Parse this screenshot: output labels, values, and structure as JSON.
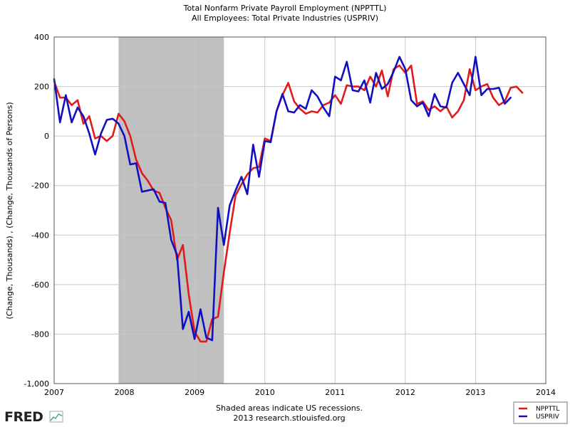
{
  "chart_data": {
    "type": "line",
    "title": "Total Nonfarm Private Payroll Employment (NPPTTL)",
    "subtitle": "All Employees: Total Private Industries (USPRIV)",
    "ylabel": "(Change, Thousands) , (Change, Thousands of Persons)",
    "xlabel": "",
    "xlim": [
      2007,
      2014
    ],
    "ylim": [
      -1000,
      400
    ],
    "x_ticks": [
      "2007",
      "2008",
      "2009",
      "2010",
      "2011",
      "2012",
      "2013",
      "2014"
    ],
    "y_ticks": [
      "400",
      "200",
      "0",
      "-200",
      "-400",
      "-600",
      "-800",
      "-1,000"
    ],
    "grid": true,
    "legend_position": "bottom-right",
    "recession": {
      "start": 2007.917,
      "end": 2009.417,
      "color": "#c0c0c0"
    },
    "series": [
      {
        "name": "NPPTTL",
        "color": "#e01b1b",
        "start": 2007.0,
        "step": 0.0833333,
        "values": [
          220,
          155,
          155,
          125,
          145,
          50,
          80,
          -10,
          0,
          -20,
          0,
          90,
          60,
          0,
          -95,
          -150,
          -180,
          -220,
          -230,
          -290,
          -340,
          -500,
          -440,
          -640,
          -790,
          -830,
          -830,
          -740,
          -730,
          -550,
          -390,
          -240,
          -195,
          -155,
          -130,
          -125,
          -10,
          -20,
          100,
          165,
          215,
          140,
          110,
          90,
          100,
          95,
          125,
          135,
          165,
          130,
          205,
          200,
          200,
          185,
          240,
          200,
          265,
          160,
          270,
          285,
          255,
          285,
          130,
          140,
          105,
          120,
          100,
          120,
          75,
          100,
          145,
          270,
          185,
          200,
          210,
          155,
          125,
          140,
          195,
          200,
          175
        ]
      },
      {
        "name": "USPRIV",
        "color": "#1010c0",
        "start": 2007.0,
        "step": 0.0833333,
        "values": [
          230,
          55,
          165,
          55,
          115,
          80,
          10,
          -75,
          10,
          65,
          70,
          50,
          0,
          -115,
          -110,
          -225,
          -220,
          -215,
          -265,
          -270,
          -420,
          -480,
          -780,
          -710,
          -820,
          -700,
          -815,
          -825,
          -290,
          -440,
          -280,
          -220,
          -165,
          -235,
          -35,
          -165,
          -20,
          -25,
          100,
          170,
          100,
          95,
          125,
          110,
          185,
          160,
          115,
          80,
          240,
          225,
          300,
          185,
          180,
          225,
          135,
          255,
          190,
          210,
          260,
          320,
          270,
          145,
          120,
          135,
          80,
          170,
          120,
          115,
          215,
          255,
          210,
          165,
          320,
          165,
          190,
          190,
          195,
          130,
          155
        ]
      }
    ],
    "footer": [
      "Shaded areas indicate US recessions.",
      "2013 research.stlouisfed.org"
    ],
    "logo": "FRED",
    "colors": {
      "grid": "#c8c8c8",
      "axis": "#555555",
      "legend_border": "#777777"
    }
  }
}
